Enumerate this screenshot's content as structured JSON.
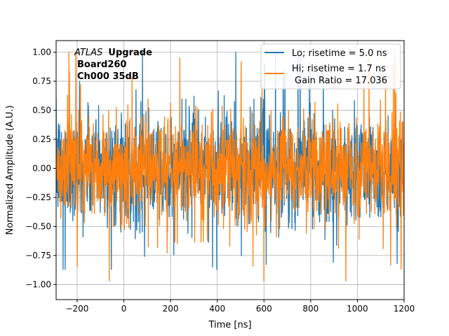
{
  "chart_data": {
    "type": "line",
    "title": "",
    "xlabel": "Time [ns]",
    "ylabel": "Normalized Amplitude (A.U.)",
    "xlim": [
      -290,
      1200
    ],
    "ylim": [
      -1.13,
      1.1
    ],
    "xticks": [
      -200,
      0,
      200,
      400,
      600,
      800,
      1000,
      1200
    ],
    "yticks": [
      -1.0,
      -0.75,
      -0.5,
      -0.25,
      0.0,
      0.25,
      0.5,
      0.75,
      1.0
    ],
    "xtick_labels": [
      "−200",
      "0",
      "200",
      "400",
      "600",
      "800",
      "1000",
      "1200"
    ],
    "ytick_labels": [
      "−1.00",
      "−0.75",
      "−0.50",
      "−0.25",
      "0.00",
      "0.25",
      "0.50",
      "0.75",
      "1.00"
    ],
    "grid": true,
    "legend_position": "top-right",
    "annotation": {
      "line1_italic": "ATLAS",
      "line1_bold": "Upgrade",
      "line2": "Board260",
      "line3": "Ch000 35dB"
    },
    "legend_extra": "Gain Ratio = 17.036",
    "series": [
      {
        "name": "Lo; risetime = 5.0 ns",
        "color": "#1f77b4",
        "description": "dense noise-like waveform",
        "x_range": [
          -290,
          1200
        ],
        "amplitude_range": [
          -0.87,
          1.0
        ],
        "peaks": [
          {
            "x": -260,
            "y": -0.87
          },
          {
            "x": -190,
            "y": 0.75
          },
          {
            "x": 80,
            "y": 1.0
          },
          {
            "x": 380,
            "y": -0.85
          },
          {
            "x": 690,
            "y": 0.85
          },
          {
            "x": 1170,
            "y": -0.82
          }
        ]
      },
      {
        "name": "Hi; risetime = 1.7 ns",
        "color": "#ff7f0e",
        "description": "dense noise-like waveform",
        "x_range": [
          -290,
          1200
        ],
        "amplitude_range": [
          -0.97,
          1.0
        ],
        "peaks": [
          {
            "x": -295,
            "y": 1.0
          },
          {
            "x": -200,
            "y": -0.85
          },
          {
            "x": 240,
            "y": 0.95
          },
          {
            "x": 600,
            "y": -0.97
          },
          {
            "x": 1050,
            "y": 0.95
          },
          {
            "x": 1160,
            "y": 0.98
          }
        ]
      }
    ]
  }
}
